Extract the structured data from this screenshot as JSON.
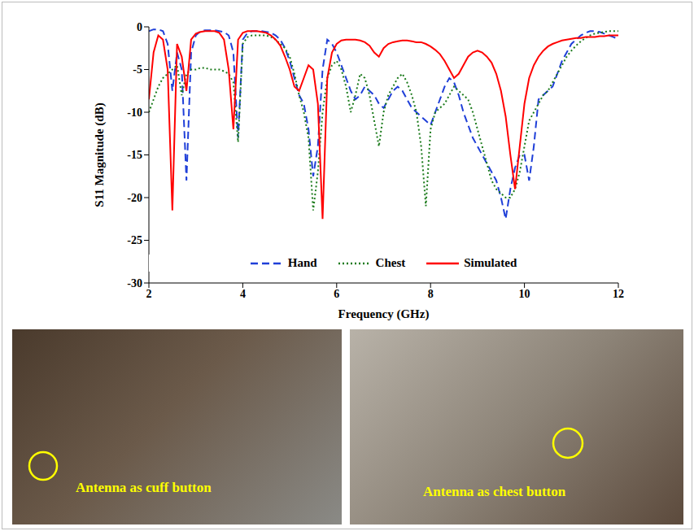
{
  "chart_data": {
    "type": "line",
    "x_label": "Frequency (GHz)",
    "y_label": "S11 Magnitude (dB)",
    "xlim": [
      2,
      12
    ],
    "xticks": [
      2,
      4,
      6,
      8,
      10,
      12
    ],
    "ylim": [
      -30,
      0
    ],
    "yticks": [
      -30,
      -25,
      -20,
      -15,
      -10,
      -5,
      0
    ],
    "grid": false,
    "legend": "bottom",
    "x": [
      2.0,
      2.1,
      2.2,
      2.3,
      2.4,
      2.5,
      2.6,
      2.7,
      2.8,
      2.9,
      3.0,
      3.1,
      3.2,
      3.3,
      3.4,
      3.5,
      3.6,
      3.7,
      3.8,
      3.9,
      4.0,
      4.1,
      4.2,
      4.3,
      4.4,
      4.5,
      4.6,
      4.7,
      4.8,
      4.9,
      5.0,
      5.1,
      5.2,
      5.3,
      5.4,
      5.5,
      5.6,
      5.7,
      5.8,
      5.9,
      6.0,
      6.1,
      6.2,
      6.3,
      6.4,
      6.5,
      6.6,
      6.7,
      6.8,
      6.9,
      7.0,
      7.1,
      7.2,
      7.3,
      7.4,
      7.5,
      7.6,
      7.7,
      7.8,
      7.9,
      8.0,
      8.1,
      8.2,
      8.3,
      8.4,
      8.5,
      8.6,
      8.7,
      8.8,
      8.9,
      9.0,
      9.1,
      9.2,
      9.3,
      9.4,
      9.5,
      9.6,
      9.7,
      9.8,
      9.9,
      10.0,
      10.1,
      10.2,
      10.3,
      10.4,
      10.5,
      10.6,
      10.7,
      10.8,
      10.9,
      11.0,
      11.1,
      11.2,
      11.3,
      11.4,
      11.5,
      11.6,
      11.7,
      11.8,
      11.9,
      12.0
    ],
    "series": [
      {
        "name": "Hand",
        "color": "#1f3fd8",
        "line_style": "dashed",
        "values": [
          -0.5,
          -0.3,
          -0.3,
          -0.5,
          -2,
          -7.5,
          -3,
          -5,
          -18,
          -3,
          -1,
          -0.5,
          -0.4,
          -0.4,
          -0.4,
          -0.5,
          -0.6,
          -1,
          -3,
          -13,
          -1.5,
          -0.7,
          -0.5,
          -0.5,
          -0.5,
          -0.6,
          -0.7,
          -1,
          -1.5,
          -2.5,
          -4,
          -6,
          -8,
          -9,
          -12,
          -17.5,
          -14,
          -5,
          -1.5,
          -2,
          -3,
          -4.5,
          -6,
          -7.5,
          -8.5,
          -8,
          -7,
          -7.5,
          -8,
          -9,
          -9.5,
          -8.5,
          -7.5,
          -7,
          -7.5,
          -8.5,
          -9.5,
          -10,
          -10.5,
          -11,
          -11.5,
          -10,
          -8.5,
          -7,
          -6,
          -6.5,
          -8,
          -10,
          -11.5,
          -13,
          -14,
          -15,
          -16,
          -17,
          -18,
          -20,
          -22.5,
          -19,
          -16.5,
          -15,
          -15,
          -18,
          -14,
          -8.5,
          -8,
          -7.5,
          -7,
          -5.5,
          -4,
          -3,
          -2,
          -1.5,
          -1,
          -0.7,
          -0.5,
          -0.5,
          -0.6,
          -0.8,
          -1,
          -1.2,
          -1.5
        ]
      },
      {
        "name": "Chest",
        "color": "#1a7a1a",
        "line_style": "dotted",
        "values": [
          -10,
          -8.5,
          -7,
          -6,
          -5.5,
          -5,
          -4.5,
          -8,
          -5.5,
          -5,
          -5,
          -4.8,
          -4.8,
          -5,
          -5,
          -5,
          -5.2,
          -5.5,
          -6.5,
          -13.5,
          -2,
          -1.2,
          -1,
          -1,
          -1,
          -1,
          -1.2,
          -1.5,
          -2,
          -2.5,
          -3.5,
          -5.5,
          -8,
          -10,
          -13,
          -21.5,
          -17,
          -10,
          -6,
          -4.5,
          -4,
          -5,
          -7,
          -10,
          -8,
          -5.5,
          -6,
          -8,
          -11,
          -14,
          -10,
          -8,
          -7,
          -6,
          -5.5,
          -6.5,
          -8,
          -10,
          -14,
          -21,
          -12,
          -10,
          -9.5,
          -9,
          -8,
          -7,
          -7.5,
          -8,
          -8.5,
          -10,
          -12,
          -14,
          -16,
          -18,
          -19,
          -19.5,
          -20,
          -20,
          -19,
          -17,
          -14,
          -11,
          -10,
          -9,
          -8,
          -7.5,
          -6.5,
          -5.5,
          -4.5,
          -3.5,
          -2.8,
          -2.2,
          -1.7,
          -1.3,
          -1,
          -0.8,
          -0.7,
          -0.6,
          -0.5,
          -0.5,
          -0.5
        ]
      },
      {
        "name": "Simulated",
        "color": "#ff0000",
        "line_style": "solid",
        "values": [
          -8.5,
          -3,
          -1,
          -1.5,
          -5,
          -21.5,
          -2,
          -3.5,
          -7.5,
          -1.5,
          -0.8,
          -0.6,
          -0.5,
          -0.5,
          -0.5,
          -0.7,
          -1.5,
          -5,
          -12,
          -1.5,
          -0.7,
          -0.5,
          -0.5,
          -0.5,
          -0.6,
          -0.7,
          -1,
          -1.5,
          -2.2,
          -3.5,
          -5,
          -7,
          -7.5,
          -6,
          -4.5,
          -5,
          -9,
          -22.5,
          -6,
          -3,
          -2,
          -1.6,
          -1.5,
          -1.5,
          -1.5,
          -1.6,
          -1.8,
          -2.2,
          -3,
          -3.5,
          -2.5,
          -2,
          -1.8,
          -1.7,
          -1.6,
          -1.6,
          -1.7,
          -1.8,
          -1.8,
          -2,
          -2.3,
          -2.7,
          -3.2,
          -4,
          -5,
          -6,
          -5.5,
          -4.5,
          -3.5,
          -3,
          -2.8,
          -3,
          -3.5,
          -4.2,
          -5.5,
          -7.5,
          -10.5,
          -15,
          -19,
          -14,
          -9,
          -6,
          -4.5,
          -3.5,
          -2.8,
          -2.3,
          -2,
          -1.8,
          -1.6,
          -1.5,
          -1.4,
          -1.3,
          -1.3,
          -1.2,
          -1.2,
          -1.2,
          -1.1,
          -1.1,
          -1,
          -1,
          -1
        ]
      }
    ],
    "annotations": [
      "Antenna as cuff button",
      "Antenna as chest button"
    ]
  }
}
